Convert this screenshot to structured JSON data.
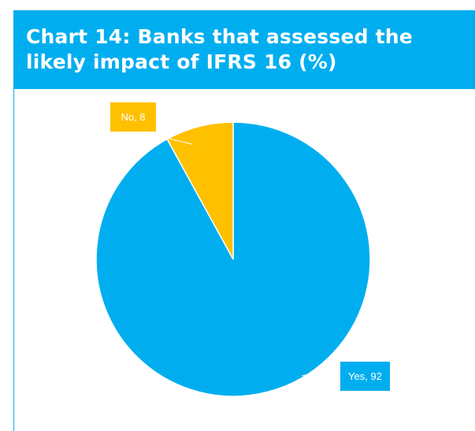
{
  "title": "Chart 14: Banks that assessed the likely impact of IFRS 16 (%)",
  "colors": {
    "header": "#00aeef",
    "yes": "#00aeef",
    "no": "#ffc000",
    "label_text": "#ffffff"
  },
  "chart_data": {
    "type": "pie",
    "title": "Chart 14: Banks that assessed the likely impact of IFRS 16 (%)",
    "slices": [
      {
        "label": "Yes",
        "value": 92,
        "data_label": "Yes, 92",
        "color": "#00aeef"
      },
      {
        "label": "No",
        "value": 8,
        "data_label": "No, 8",
        "color": "#ffc000"
      }
    ],
    "legend": "none"
  }
}
